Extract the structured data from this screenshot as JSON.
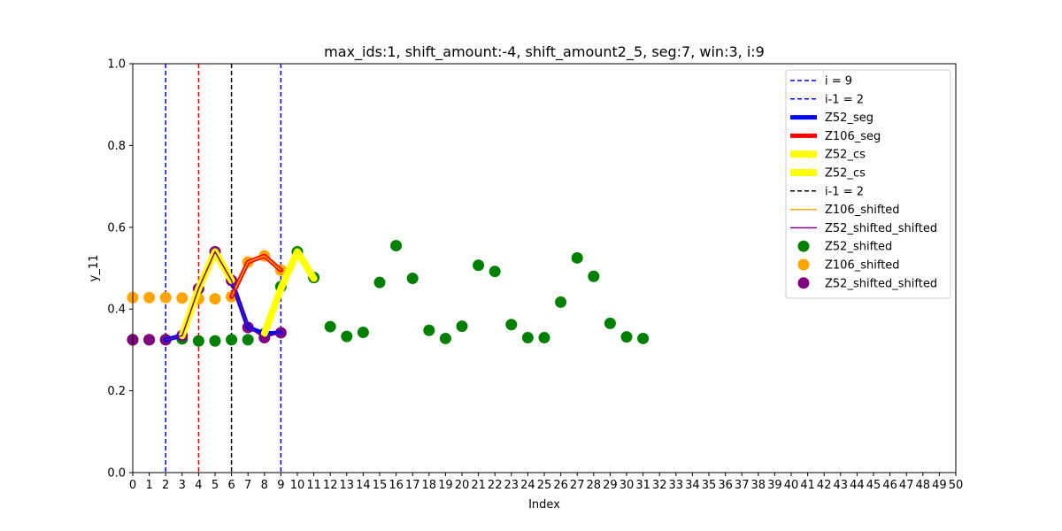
{
  "chart_data": {
    "type": "line",
    "title": "max_ids:1, shift_amount:-4, shift_amount2_5, seg:7, win:3, i:9",
    "xlabel": "Index",
    "ylabel": "y_11",
    "xlim": [
      0,
      50
    ],
    "ylim": [
      0,
      1
    ],
    "x_ticks": [
      0,
      1,
      2,
      3,
      4,
      5,
      6,
      7,
      8,
      9,
      10,
      11,
      12,
      13,
      14,
      15,
      16,
      17,
      18,
      19,
      20,
      21,
      22,
      23,
      24,
      25,
      26,
      27,
      28,
      29,
      30,
      31,
      32,
      33,
      34,
      35,
      36,
      37,
      38,
      39,
      40,
      41,
      42,
      43,
      44,
      45,
      46,
      47,
      48,
      49,
      50
    ],
    "y_ticks": [
      0.0,
      0.2,
      0.4,
      0.6,
      0.8,
      1.0
    ],
    "y_tick_labels": [
      "0.0",
      "0.2",
      "0.4",
      "0.6",
      "0.8",
      "1.0"
    ],
    "grid": false,
    "legend_position": "top-right",
    "vlines": [
      {
        "name": "i = 9",
        "x": 2,
        "color": "#0000ff",
        "legend": true
      },
      {
        "name": "i-1 = 2",
        "x": 9,
        "color": "#0000ff",
        "legend": true
      },
      {
        "name": "",
        "x": 4,
        "color": "#ff0000",
        "legend": false
      },
      {
        "name": "i-1 = 2",
        "x": 6,
        "color": "#000000",
        "legend": true
      }
    ],
    "segments": [
      {
        "name": "Z52_seg",
        "color": "#0000ff",
        "x": [
          2,
          3,
          4,
          5,
          6,
          7,
          8,
          9
        ],
        "y": [
          0.325,
          0.335,
          0.45,
          0.54,
          0.47,
          0.355,
          0.34,
          0.342
        ]
      },
      {
        "name": "Z106_seg",
        "color": "#ff0000",
        "x": [
          6,
          7,
          8,
          9
        ],
        "y": [
          0.43,
          0.515,
          0.53,
          0.495
        ]
      },
      {
        "name": "Z52_cs",
        "color": "#ffff00",
        "x": [
          3,
          4,
          5,
          6
        ],
        "y": [
          0.335,
          0.45,
          0.54,
          0.47
        ]
      },
      {
        "name": "Z52_cs",
        "color": "#ffff00",
        "x": [
          8,
          9,
          10,
          11
        ],
        "y": [
          0.34,
          0.45,
          0.54,
          0.475
        ]
      }
    ],
    "lines": [
      {
        "name": "Z106_shifted",
        "color": "#ffa500",
        "x": [
          6,
          7,
          8,
          9
        ],
        "y": [
          0.43,
          0.515,
          0.53,
          0.495
        ]
      },
      {
        "name": "Z52_shifted_shifted",
        "color": "#800080",
        "x": [
          2,
          3,
          4,
          5,
          6,
          7,
          8,
          9
        ],
        "y": [
          0.325,
          0.335,
          0.45,
          0.54,
          0.47,
          0.355,
          0.33,
          0.342
        ]
      }
    ],
    "scatter": [
      {
        "name": "Z52_shifted",
        "color": "#008000",
        "x": [
          0,
          1,
          2,
          3,
          4,
          5,
          6,
          7,
          8,
          9,
          10,
          11,
          12,
          13,
          14,
          15,
          16,
          17,
          18,
          19,
          20,
          21,
          22,
          23,
          24,
          25,
          26,
          27,
          28,
          29,
          30,
          31
        ],
        "y": [
          0.325,
          0.325,
          0.325,
          0.327,
          0.322,
          0.322,
          0.325,
          0.325,
          0.34,
          0.455,
          0.54,
          0.477,
          0.357,
          0.333,
          0.343,
          0.465,
          0.555,
          0.475,
          0.348,
          0.328,
          0.358,
          0.507,
          0.492,
          0.362,
          0.33,
          0.33,
          0.417,
          0.525,
          0.48,
          0.365,
          0.332,
          0.328
        ]
      },
      {
        "name": "Z106_shifted",
        "color": "#ffa500",
        "x": [
          0,
          1,
          2,
          3,
          4,
          5,
          6,
          7,
          8,
          9
        ],
        "y": [
          0.428,
          0.428,
          0.428,
          0.427,
          0.425,
          0.425,
          0.43,
          0.515,
          0.53,
          0.495
        ]
      },
      {
        "name": "Z52_shifted_shifted",
        "color": "#800080",
        "x": [
          0,
          1,
          2,
          3,
          4,
          5,
          6,
          7,
          8,
          9
        ],
        "y": [
          0.325,
          0.325,
          0.325,
          0.335,
          0.45,
          0.54,
          0.47,
          0.355,
          0.33,
          0.342
        ]
      }
    ],
    "legend": [
      {
        "label": "i = 9",
        "kind": "dashed",
        "color": "#0000ff"
      },
      {
        "label": "i-1 = 2",
        "kind": "dashed",
        "color": "#0000ff"
      },
      {
        "label": "Z52_seg",
        "kind": "thick",
        "color": "#0000ff"
      },
      {
        "label": "Z106_seg",
        "kind": "thick",
        "color": "#ff0000"
      },
      {
        "label": "Z52_cs",
        "kind": "thick",
        "color": "#ffff00"
      },
      {
        "label": "Z52_cs",
        "kind": "thick",
        "color": "#ffff00"
      },
      {
        "label": "i-1 = 2",
        "kind": "dashed",
        "color": "#000000"
      },
      {
        "label": "Z106_shifted",
        "kind": "line",
        "color": "#ffa500"
      },
      {
        "label": "Z52_shifted_shifted",
        "kind": "line",
        "color": "#800080"
      },
      {
        "label": "Z52_shifted",
        "kind": "marker",
        "color": "#008000"
      },
      {
        "label": "Z106_shifted",
        "kind": "marker",
        "color": "#ffa500"
      },
      {
        "label": "Z52_shifted_shifted",
        "kind": "marker",
        "color": "#800080"
      }
    ]
  }
}
